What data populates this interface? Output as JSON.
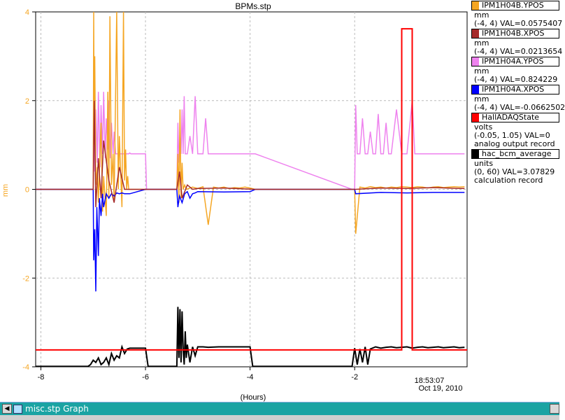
{
  "chart_data": {
    "type": "line",
    "title": "BPMs.stp",
    "xlabel": "(Hours)",
    "ylabel": "mm",
    "xlim": [
      -8.1,
      0.15
    ],
    "ylim": [
      -4,
      4
    ],
    "x_ticks": [
      -8,
      -6,
      -4,
      -2
    ],
    "x_tick_labels": [
      "-8",
      "-6",
      "-4",
      "-2"
    ],
    "y_ticks": [
      -4,
      -2,
      0,
      2,
      4
    ],
    "y_tick_labels": [
      "-4",
      "-2",
      "0",
      "2",
      "4"
    ],
    "timestamp_time": "18:53:07",
    "timestamp_date": "Oct 19, 2010",
    "grid": true,
    "legend_position": "right",
    "series": [
      {
        "name": "IPM1H04B.YPOS",
        "color": "#f5a623",
        "unit": "mm",
        "range": "(-4, 4) VAL=0.0575407",
        "x": [
          -8.1,
          -7.0,
          -6.99,
          -6.98,
          -6.97,
          -6.95,
          -6.92,
          -6.9,
          -6.85,
          -6.82,
          -6.8,
          -6.75,
          -6.72,
          -6.7,
          -6.68,
          -6.65,
          -6.62,
          -6.6,
          -6.55,
          -6.52,
          -6.5,
          -6.45,
          -6.42,
          -6.4,
          -6.38,
          -6.36,
          -6.34,
          -6.32,
          -6.3,
          -5.4,
          -5.38,
          -5.36,
          -5.34,
          -5.32,
          -5.3,
          -5.28,
          -5.25,
          -5.22,
          -5.1,
          -5.0,
          -4.9,
          -4.8,
          -4.7,
          -4.6,
          -4.5,
          -4.4,
          -4.3,
          -4.2,
          -4.1,
          -4.0,
          -3.9,
          -2.0,
          -1.98,
          -1.9,
          -1.8,
          -1.7,
          -1.6,
          -1.5,
          -1.4,
          -1.3,
          -1.2,
          -1.1,
          -1.0,
          -0.9,
          -0.8,
          -0.7,
          -0.6,
          -0.5,
          -0.4,
          -0.3,
          -0.2,
          -0.1,
          0.0,
          0.1
        ],
        "y": [
          0.0,
          0.0,
          4.0,
          1.0,
          3.0,
          0.1,
          0.5,
          -0.3,
          1.5,
          -0.5,
          0.3,
          -0.6,
          2.2,
          -0.2,
          3.9,
          0.1,
          0.8,
          -0.3,
          4.0,
          0.0,
          1.2,
          -0.4,
          4.0,
          0.2,
          0.9,
          0.0,
          0.3,
          0.0,
          0.0,
          0.0,
          0.8,
          -0.3,
          1.8,
          -0.2,
          0.6,
          0.0,
          0.1,
          0.0,
          0.05,
          0.02,
          0.06,
          -0.8,
          0.05,
          0.03,
          0.05,
          0.02,
          0.04,
          0.03,
          0.05,
          0.03,
          0.0,
          0.0,
          -1.0,
          0.05,
          0.03,
          0.06,
          0.04,
          0.05,
          0.03,
          0.05,
          0.04,
          0.06,
          0.05,
          0.04,
          0.06,
          0.05,
          0.03,
          0.05,
          0.06,
          0.04,
          0.05,
          0.06,
          0.05,
          0.06
        ]
      },
      {
        "name": "IPM1H04B.XPOS",
        "color": "#a52a2a",
        "unit": "mm",
        "range": "(-4, 4) VAL=0.0213654",
        "x": [
          -8.1,
          -7.0,
          -6.98,
          -6.95,
          -6.9,
          -6.85,
          -6.8,
          -6.7,
          -6.6,
          -6.5,
          -6.4,
          -6.3,
          -5.4,
          -5.35,
          -5.3,
          -5.2,
          -5.1,
          -5.0,
          -4.5,
          -3.9,
          -2.0,
          -1.5,
          -1.0,
          -0.5,
          0.0,
          0.1
        ],
        "y": [
          0.0,
          0.0,
          2.0,
          -0.4,
          0.7,
          -0.2,
          1.1,
          0.2,
          -0.3,
          0.5,
          0.0,
          0.0,
          0.0,
          0.4,
          -0.2,
          0.1,
          0.0,
          0.02,
          0.03,
          0.0,
          0.0,
          0.03,
          0.02,
          0.04,
          0.02,
          0.02
        ]
      },
      {
        "name": "IPM1H04A.YPOS",
        "color": "#ee82ee",
        "unit": "mm",
        "range": "(-4, 4) VAL=0.824229",
        "x": [
          -8.1,
          -7.0,
          -6.99,
          -6.97,
          -6.95,
          -6.92,
          -6.9,
          -6.87,
          -6.85,
          -6.82,
          -6.8,
          -6.77,
          -6.75,
          -6.72,
          -6.7,
          -6.67,
          -6.65,
          -6.62,
          -6.6,
          -6.57,
          -6.55,
          -6.5,
          -6.45,
          -6.4,
          -6.35,
          -6.32,
          -6.3,
          -6.28,
          -6.25,
          -6.0,
          -5.98,
          -5.4,
          -5.38,
          -5.36,
          -5.34,
          -5.32,
          -5.3,
          -5.28,
          -5.26,
          -5.24,
          -5.2,
          -5.15,
          -5.1,
          -5.05,
          -5.0,
          -4.95,
          -4.9,
          -4.85,
          -4.8,
          -4.7,
          -4.6,
          -4.5,
          -4.4,
          -4.3,
          -4.2,
          -4.1,
          -4.0,
          -3.9,
          -2.05,
          -2.0,
          -1.98,
          -1.95,
          -1.9,
          -1.85,
          -1.8,
          -1.75,
          -1.7,
          -1.65,
          -1.6,
          -1.55,
          -1.5,
          -1.45,
          -1.4,
          -1.35,
          -1.3,
          -1.2,
          -1.1,
          -1.0,
          -0.9,
          -0.85,
          -0.8,
          -0.7,
          -0.6,
          -0.5,
          -0.4,
          -0.3,
          -0.2,
          -0.1,
          0.0,
          0.1
        ],
        "y": [
          0.0,
          0.0,
          2.4,
          0.4,
          1.8,
          0.6,
          2.2,
          0.5,
          1.9,
          0.8,
          2.2,
          0.7,
          1.6,
          0.9,
          2.0,
          0.7,
          1.5,
          0.8,
          1.3,
          0.8,
          0.8,
          0.8,
          0.8,
          0.8,
          0.8,
          0.8,
          0.82,
          0.8,
          0.8,
          0.8,
          0.0,
          0.0,
          1.5,
          0.6,
          1.3,
          0.8,
          1.8,
          0.8,
          2.1,
          0.8,
          0.8,
          1.2,
          0.8,
          2.1,
          0.8,
          0.8,
          0.8,
          1.6,
          0.8,
          0.8,
          0.8,
          0.8,
          0.8,
          0.8,
          0.8,
          0.8,
          0.8,
          0.8,
          0.0,
          0.0,
          1.9,
          0.8,
          0.8,
          1.6,
          0.8,
          0.8,
          1.3,
          0.8,
          0.8,
          1.7,
          0.8,
          0.8,
          1.5,
          0.8,
          0.8,
          1.8,
          0.8,
          0.8,
          2.0,
          0.8,
          0.8,
          0.8,
          0.8,
          0.8,
          0.8,
          0.8,
          0.8,
          0.8,
          0.8,
          0.8
        ]
      },
      {
        "name": "IPM1H04A.XPOS",
        "color": "#0000ff",
        "unit": "mm",
        "range": "(-4, 4) VAL=-0.0662502",
        "x": [
          -8.1,
          -7.0,
          -6.99,
          -6.97,
          -6.95,
          -6.93,
          -6.9,
          -6.88,
          -6.85,
          -6.82,
          -6.8,
          -6.75,
          -6.7,
          -6.65,
          -6.6,
          -6.55,
          -6.5,
          -6.45,
          -6.4,
          -6.3,
          -6.0,
          -5.4,
          -5.38,
          -5.35,
          -5.3,
          -5.25,
          -5.2,
          -5.15,
          -5.1,
          -5.05,
          -5.0,
          -4.5,
          -4.0,
          -3.9,
          -2.0,
          -1.98,
          -1.5,
          -1.0,
          -0.5,
          0.0,
          0.1
        ],
        "y": [
          0.0,
          0.0,
          -1.6,
          -0.9,
          -2.3,
          -0.4,
          -1.5,
          -0.2,
          -0.6,
          -0.1,
          -0.4,
          -0.1,
          -0.2,
          -0.1,
          -0.15,
          -0.08,
          -0.1,
          -0.08,
          -0.1,
          -0.1,
          0.0,
          0.0,
          -0.4,
          -0.15,
          -0.3,
          -0.1,
          -0.05,
          -0.2,
          -0.1,
          -0.08,
          -0.05,
          -0.06,
          -0.05,
          0.0,
          0.0,
          -0.1,
          -0.07,
          -0.08,
          -0.07,
          -0.07,
          -0.07
        ]
      },
      {
        "name": "HallADAQState",
        "color": "#ff0000",
        "unit": "volts",
        "range": "(-0.05, 1.05) VAL=0",
        "note": "analog output record",
        "x": [
          -8.1,
          -1.1,
          -1.1,
          -0.9,
          -0.9,
          0.15
        ],
        "y": [
          -3.62,
          -3.62,
          3.62,
          3.62,
          -3.62,
          -3.62
        ]
      },
      {
        "name": "hac_bcm_average",
        "color": "#000000",
        "unit": "units",
        "range": "(0, 60) VAL=3.07829",
        "note": "calculation record",
        "x": [
          -8.1,
          -7.1,
          -7.05,
          -7.0,
          -6.95,
          -6.9,
          -6.85,
          -6.8,
          -6.75,
          -6.7,
          -6.65,
          -6.6,
          -6.55,
          -6.5,
          -6.45,
          -6.4,
          -6.35,
          -6.3,
          -6.0,
          -5.95,
          -5.4,
          -5.38,
          -5.36,
          -5.34,
          -5.32,
          -5.3,
          -5.28,
          -5.26,
          -5.24,
          -5.22,
          -5.2,
          -5.15,
          -5.1,
          -5.05,
          -5.0,
          -4.9,
          -4.8,
          -4.6,
          -4.4,
          -4.2,
          -4.0,
          -3.95,
          -3.9,
          -2.05,
          -2.0,
          -1.95,
          -1.9,
          -1.85,
          -1.8,
          -1.75,
          -1.7,
          -1.6,
          -1.5,
          -1.4,
          -1.3,
          -1.2,
          -1.1,
          -1.0,
          -0.9,
          -0.8,
          -0.7,
          -0.6,
          -0.5,
          -0.4,
          -0.3,
          -0.2,
          -0.1,
          0.0,
          0.1
        ],
        "y": [
          -3.99,
          -3.99,
          -3.95,
          -3.85,
          -3.9,
          -3.8,
          -3.95,
          -3.9,
          -3.8,
          -3.95,
          -3.7,
          -3.85,
          -3.75,
          -3.8,
          -3.55,
          -3.7,
          -3.6,
          -3.58,
          -3.58,
          -3.99,
          -3.99,
          -2.65,
          -3.8,
          -2.7,
          -3.9,
          -2.75,
          -3.6,
          -3.95,
          -3.2,
          -3.8,
          -3.5,
          -3.9,
          -3.55,
          -3.75,
          -3.55,
          -3.55,
          -3.56,
          -3.55,
          -3.55,
          -3.55,
          -3.55,
          -3.99,
          -3.99,
          -3.99,
          -3.58,
          -3.95,
          -3.6,
          -3.9,
          -3.55,
          -3.95,
          -3.6,
          -3.55,
          -3.58,
          -3.56,
          -3.55,
          -3.57,
          -3.56,
          -3.55,
          -3.58,
          -3.56,
          -3.55,
          -3.57,
          -3.56,
          -3.55,
          -3.57,
          -3.56,
          -3.55,
          -3.57,
          -3.56
        ]
      }
    ]
  },
  "taskbar": {
    "title": "misc.stp Graph"
  }
}
